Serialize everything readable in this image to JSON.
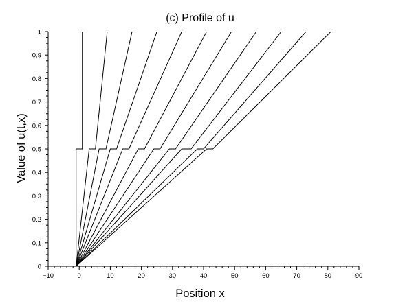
{
  "chart_data": {
    "type": "line",
    "title": "(c) Profile of u",
    "xlabel": "Position x",
    "ylabel": "Value of u(t,x)",
    "xlim": [
      -10,
      90
    ],
    "ylim": [
      0,
      1
    ],
    "x_ticks": [
      "−10",
      "0",
      "10",
      "20",
      "30",
      "40",
      "50",
      "60",
      "70",
      "80",
      "90"
    ],
    "x_tick_values": [
      -10,
      0,
      10,
      20,
      30,
      40,
      50,
      60,
      70,
      80,
      90
    ],
    "y_ticks": [
      "0",
      "0.1",
      "0.2",
      "0.3",
      "0.4",
      "0.5",
      "0.6",
      "0.7",
      "0.8",
      "0.9",
      "1"
    ],
    "y_tick_values": [
      0,
      0.1,
      0.2,
      0.3,
      0.4,
      0.5,
      0.6,
      0.7,
      0.8,
      0.9,
      1
    ],
    "grid": false,
    "series": [
      {
        "points": [
          [
            -1,
            0
          ],
          [
            -1,
            0.5
          ],
          [
            1,
            0.5
          ],
          [
            1,
            1
          ]
        ]
      },
      {
        "points": [
          [
            -1,
            0
          ],
          [
            3.2,
            0.5
          ],
          [
            5.2,
            0.5
          ],
          [
            9,
            1
          ]
        ]
      },
      {
        "points": [
          [
            -1,
            0
          ],
          [
            6.4,
            0.5
          ],
          [
            8.6,
            0.5
          ],
          [
            17,
            1
          ]
        ]
      },
      {
        "points": [
          [
            -1,
            0
          ],
          [
            10,
            0.5
          ],
          [
            12,
            0.5
          ],
          [
            25,
            1
          ]
        ]
      },
      {
        "points": [
          [
            -1,
            0
          ],
          [
            14,
            0.5
          ],
          [
            16,
            0.5
          ],
          [
            33,
            1
          ]
        ]
      },
      {
        "points": [
          [
            -1,
            0
          ],
          [
            19,
            0.5
          ],
          [
            21,
            0.5
          ],
          [
            41,
            1
          ]
        ]
      },
      {
        "points": [
          [
            -1,
            0
          ],
          [
            24,
            0.5
          ],
          [
            26,
            0.5
          ],
          [
            49,
            1
          ]
        ]
      },
      {
        "points": [
          [
            -1,
            0
          ],
          [
            29,
            0.5
          ],
          [
            31,
            0.5
          ],
          [
            57,
            1
          ]
        ]
      },
      {
        "points": [
          [
            -1,
            0
          ],
          [
            33,
            0.5
          ],
          [
            36,
            0.5
          ],
          [
            65,
            1
          ]
        ]
      },
      {
        "points": [
          [
            -1,
            0
          ],
          [
            38,
            0.5
          ],
          [
            40,
            0.5
          ],
          [
            73,
            1
          ]
        ]
      },
      {
        "points": [
          [
            -1,
            0
          ],
          [
            41,
            0.5
          ],
          [
            43,
            0.5
          ],
          [
            81,
            1
          ]
        ]
      }
    ],
    "line_color": "#000000"
  }
}
